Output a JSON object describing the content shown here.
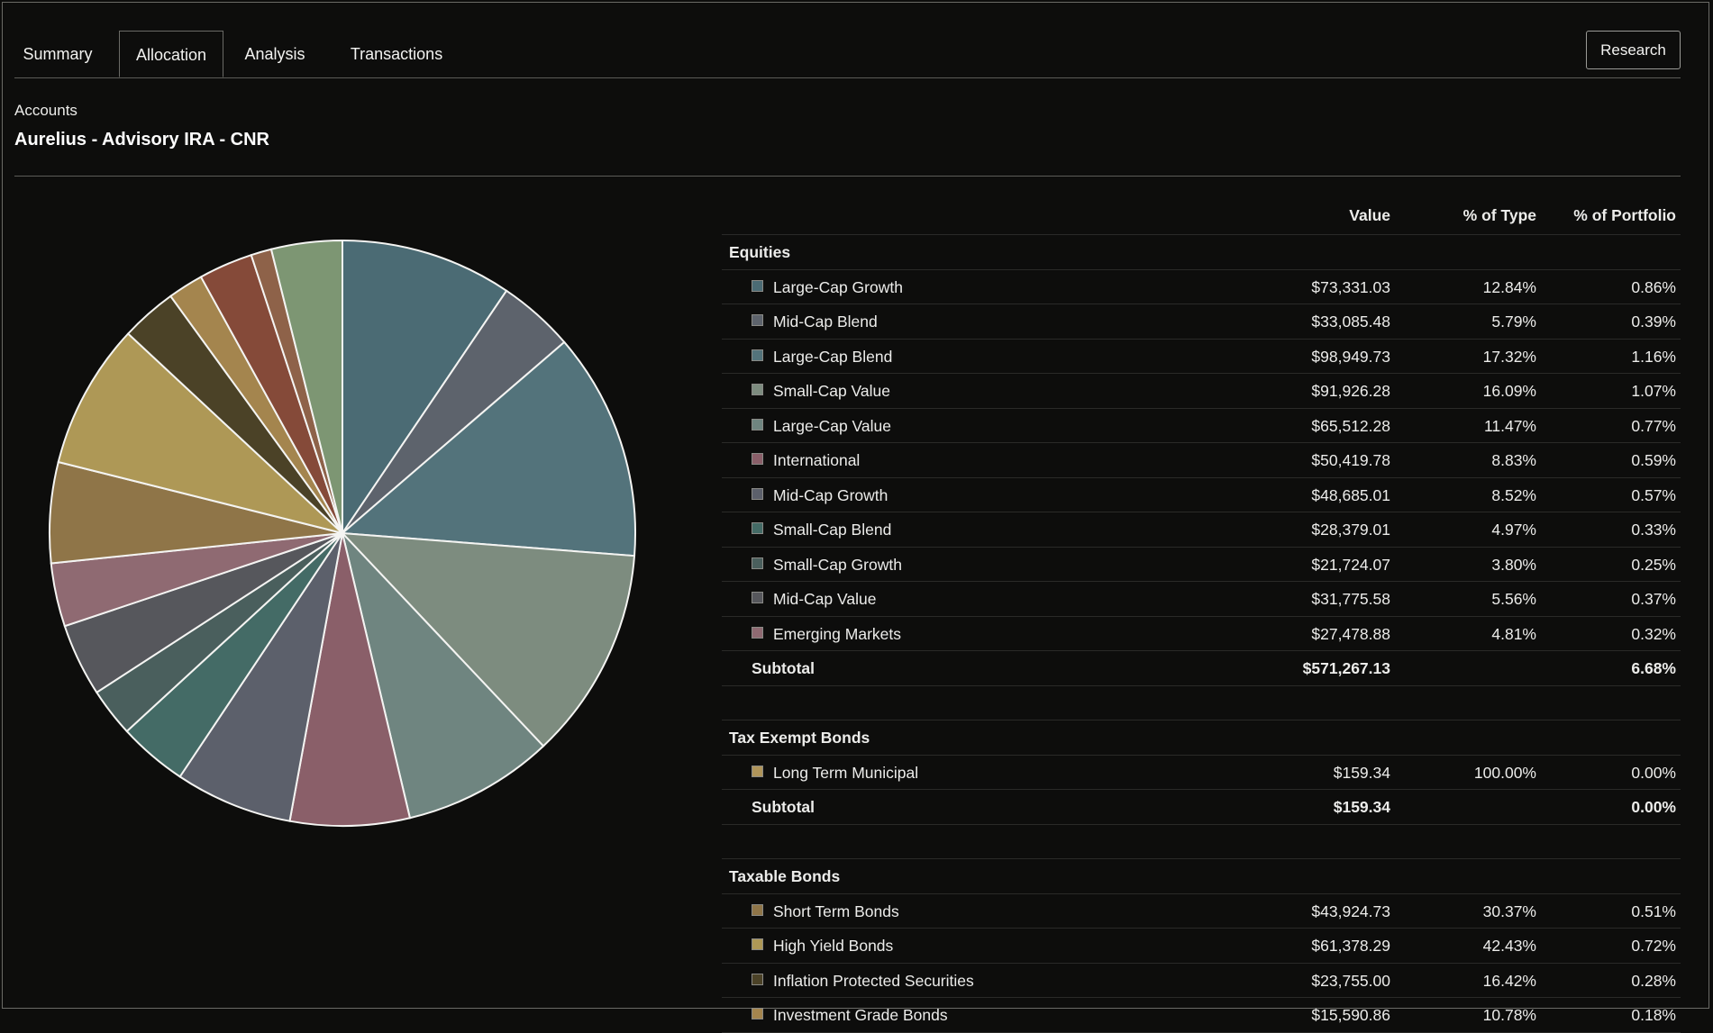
{
  "tabs": [
    "Summary",
    "Allocation",
    "Analysis",
    "Transactions"
  ],
  "active_tab": "Allocation",
  "research_label": "Research",
  "accounts_label": "Accounts",
  "account_name": "Aurelius - Advisory IRA - CNR",
  "table": {
    "headers": {
      "value": "Value",
      "pct_type": "% of Type",
      "pct_portfolio": "% of Portfolio"
    },
    "groups": [
      {
        "name": "Equities",
        "rows": [
          {
            "name": "Large-Cap Growth",
            "value": "$73,331.03",
            "pct_type": "12.84%",
            "pct_portfolio": "0.86%",
            "color": "#4b6b74"
          },
          {
            "name": "Mid-Cap Blend",
            "value": "$33,085.48",
            "pct_type": "5.79%",
            "pct_portfolio": "0.39%",
            "color": "#5d636c"
          },
          {
            "name": "Large-Cap Blend",
            "value": "$98,949.73",
            "pct_type": "17.32%",
            "pct_portfolio": "1.16%",
            "color": "#53737b"
          },
          {
            "name": "Small-Cap Value",
            "value": "$91,926.28",
            "pct_type": "16.09%",
            "pct_portfolio": "1.07%",
            "color": "#7d8c7f"
          },
          {
            "name": "Large-Cap Value",
            "value": "$65,512.28",
            "pct_type": "11.47%",
            "pct_portfolio": "0.77%",
            "color": "#6f8580"
          },
          {
            "name": "International",
            "value": "$50,419.78",
            "pct_type": "8.83%",
            "pct_portfolio": "0.59%",
            "color": "#8a5f69"
          },
          {
            "name": "Mid-Cap Growth",
            "value": "$48,685.01",
            "pct_type": "8.52%",
            "pct_portfolio": "0.57%",
            "color": "#5c606b"
          },
          {
            "name": "Small-Cap Blend",
            "value": "$28,379.01",
            "pct_type": "4.97%",
            "pct_portfolio": "0.33%",
            "color": "#446b66"
          },
          {
            "name": "Small-Cap Growth",
            "value": "$21,724.07",
            "pct_type": "3.80%",
            "pct_portfolio": "0.25%",
            "color": "#4a5f5d"
          },
          {
            "name": "Mid-Cap Value",
            "value": "$31,775.58",
            "pct_type": "5.56%",
            "pct_portfolio": "0.37%",
            "color": "#56575c"
          },
          {
            "name": "Emerging Markets",
            "value": "$27,478.88",
            "pct_type": "4.81%",
            "pct_portfolio": "0.32%",
            "color": "#8f6a72"
          }
        ],
        "subtotal": {
          "label": "Subtotal",
          "value": "$571,267.13",
          "pct_portfolio": "6.68%"
        }
      },
      {
        "name": "Tax Exempt Bonds",
        "rows": [
          {
            "name": "Long Term Municipal",
            "value": "$159.34",
            "pct_type": "100.00%",
            "pct_portfolio": "0.00%",
            "color": "#b0955a"
          }
        ],
        "subtotal": {
          "label": "Subtotal",
          "value": "$159.34",
          "pct_portfolio": "0.00%"
        }
      },
      {
        "name": "Taxable Bonds",
        "rows": [
          {
            "name": "Short Term Bonds",
            "value": "$43,924.73",
            "pct_type": "30.37%",
            "pct_portfolio": "0.51%",
            "color": "#8f7548"
          },
          {
            "name": "High Yield Bonds",
            "value": "$61,378.29",
            "pct_type": "42.43%",
            "pct_portfolio": "0.72%",
            "color": "#ae9856"
          },
          {
            "name": "Inflation Protected Securities",
            "value": "$23,755.00",
            "pct_type": "16.42%",
            "pct_portfolio": "0.28%",
            "color": "#4b4227"
          },
          {
            "name": "Investment Grade Bonds",
            "value": "$15,590.86",
            "pct_type": "10.78%",
            "pct_portfolio": "0.18%",
            "color": "#a4854e"
          }
        ]
      }
    ]
  },
  "chart_data": {
    "type": "pie",
    "slices": [
      {
        "label": "Large-Cap Growth",
        "value": 9.2,
        "color": "#4b6b74"
      },
      {
        "label": "Mid-Cap Blend",
        "value": 4.1,
        "color": "#5d636c"
      },
      {
        "label": "Large-Cap Blend",
        "value": 12.2,
        "color": "#53737b"
      },
      {
        "label": "Small-Cap Value",
        "value": 11.4,
        "color": "#7d8c7f"
      },
      {
        "label": "Large-Cap Value",
        "value": 8.1,
        "color": "#6f8580"
      },
      {
        "label": "International",
        "value": 6.4,
        "color": "#8a5f69"
      },
      {
        "label": "Mid-Cap Growth",
        "value": 6.3,
        "color": "#5c606b"
      },
      {
        "label": "Small-Cap Blend",
        "value": 3.7,
        "color": "#446b66"
      },
      {
        "label": "Small-Cap Growth",
        "value": 2.6,
        "color": "#4a5f5d"
      },
      {
        "label": "Mid-Cap Value",
        "value": 3.9,
        "color": "#56575c"
      },
      {
        "label": "Emerging Markets",
        "value": 3.4,
        "color": "#8f6a72"
      },
      {
        "label": "Short Term Bonds",
        "value": 5.4,
        "color": "#8f7548"
      },
      {
        "label": "High Yield Bonds",
        "value": 7.8,
        "color": "#ae9856"
      },
      {
        "label": "Inflation Protected Securities",
        "value": 3.0,
        "color": "#4b4227"
      },
      {
        "label": "Investment Grade Bonds",
        "value": 1.9,
        "color": "#a4854e"
      },
      {
        "label": "",
        "value": 2.9,
        "color": "#854a39"
      },
      {
        "label": "",
        "value": 1.1,
        "color": "#8e6249"
      },
      {
        "label": "",
        "value": 3.8,
        "color": "#7d9673"
      }
    ]
  }
}
